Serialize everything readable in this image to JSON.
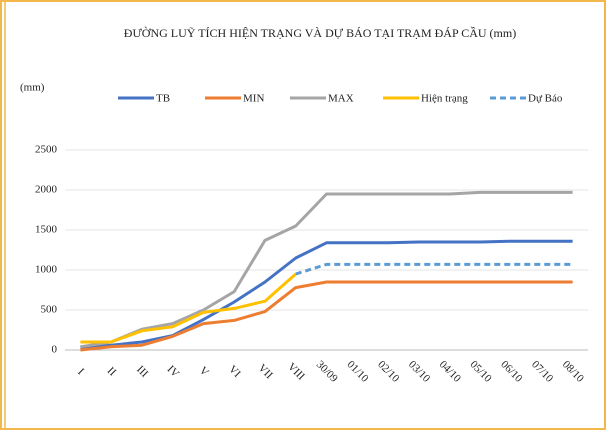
{
  "chart_data": {
    "type": "line",
    "title": "ĐƯỜNG LUỸ TÍCH HIỆN TRẠNG VÀ DỰ BÁO TẠI TRẠM ĐÁP CẦU (mm)",
    "y_label": "(mm)",
    "categories": [
      "I",
      "II",
      "III",
      "IV",
      "V",
      "VI",
      "VII",
      "VIII",
      "30/09",
      "01/10",
      "02/10",
      "03/10",
      "04/10",
      "05/10",
      "06/10",
      "07/10",
      "08/10"
    ],
    "series": [
      {
        "name": "TB",
        "color": "#4472c4",
        "dashed": false,
        "values": [
          30,
          60,
          100,
          180,
          380,
          600,
          850,
          1150,
          1340,
          1340,
          1340,
          1350,
          1350,
          1350,
          1360,
          1360,
          1360
        ]
      },
      {
        "name": "MIN",
        "color": "#ed7d31",
        "dashed": false,
        "values": [
          0,
          40,
          60,
          170,
          330,
          370,
          480,
          780,
          850,
          850,
          850,
          850,
          850,
          850,
          850,
          850,
          850
        ]
      },
      {
        "name": "MAX",
        "color": "#a5a5a5",
        "dashed": false,
        "values": [
          40,
          100,
          260,
          330,
          500,
          730,
          1370,
          1550,
          1950,
          1950,
          1950,
          1950,
          1950,
          1970,
          1970,
          1970,
          1970
        ]
      },
      {
        "name": "Hiện trạng",
        "color": "#ffc000",
        "dashed": false,
        "values": [
          100,
          100,
          240,
          290,
          470,
          520,
          610,
          950,
          null,
          null,
          null,
          null,
          null,
          null,
          null,
          null,
          null
        ]
      },
      {
        "name": "Dự Báo",
        "color": "#5b9bd5",
        "dashed": true,
        "values": [
          null,
          null,
          null,
          null,
          null,
          null,
          null,
          950,
          1070,
          1070,
          1070,
          1070,
          1070,
          1070,
          1070,
          1070,
          1070
        ]
      }
    ],
    "ylim": [
      0,
      2500
    ],
    "yticks": [
      0,
      500,
      1000,
      1500,
      2000,
      2500
    ],
    "grid": true
  }
}
